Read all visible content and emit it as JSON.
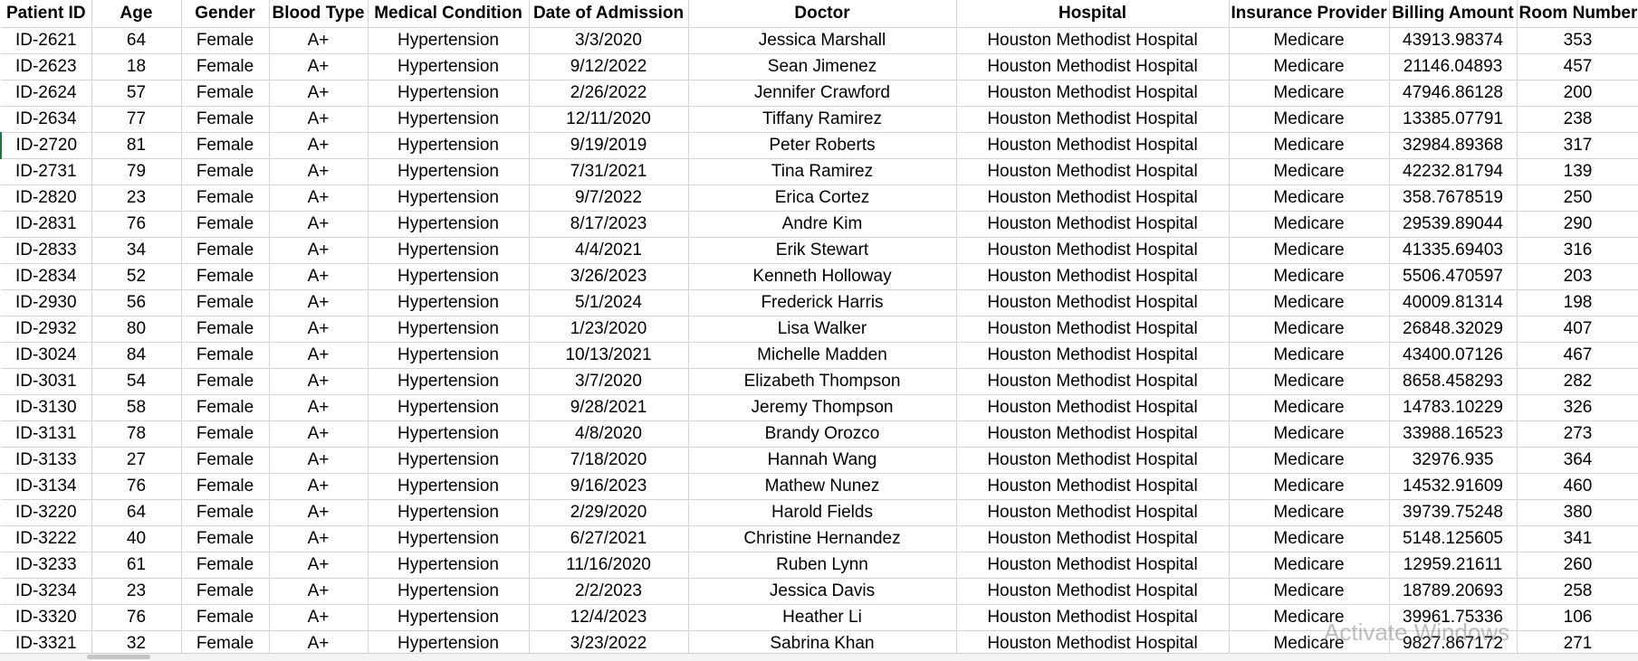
{
  "columns": [
    "Patient ID",
    "Age",
    "Gender",
    "Blood Type",
    "Medical Condition",
    "Date of Admission",
    "Doctor",
    "Hospital",
    "Insurance Provider",
    "Billing Amount",
    "Room Number"
  ],
  "rows": [
    [
      "ID-2621",
      "64",
      "Female",
      "A+",
      "Hypertension",
      "3/3/2020",
      "Jessica Marshall",
      "Houston Methodist Hospital",
      "Medicare",
      "43913.98374",
      "353"
    ],
    [
      "ID-2623",
      "18",
      "Female",
      "A+",
      "Hypertension",
      "9/12/2022",
      "Sean Jimenez",
      "Houston Methodist Hospital",
      "Medicare",
      "21146.04893",
      "457"
    ],
    [
      "ID-2624",
      "57",
      "Female",
      "A+",
      "Hypertension",
      "2/26/2022",
      "Jennifer Crawford",
      "Houston Methodist Hospital",
      "Medicare",
      "47946.86128",
      "200"
    ],
    [
      "ID-2634",
      "77",
      "Female",
      "A+",
      "Hypertension",
      "12/11/2020",
      "Tiffany Ramirez",
      "Houston Methodist Hospital",
      "Medicare",
      "13385.07791",
      "238"
    ],
    [
      "ID-2720",
      "81",
      "Female",
      "A+",
      "Hypertension",
      "9/19/2019",
      "Peter Roberts",
      "Houston Methodist Hospital",
      "Medicare",
      "32984.89368",
      "317"
    ],
    [
      "ID-2731",
      "79",
      "Female",
      "A+",
      "Hypertension",
      "7/31/2021",
      "Tina Ramirez",
      "Houston Methodist Hospital",
      "Medicare",
      "42232.81794",
      "139"
    ],
    [
      "ID-2820",
      "23",
      "Female",
      "A+",
      "Hypertension",
      "9/7/2022",
      "Erica Cortez",
      "Houston Methodist Hospital",
      "Medicare",
      "358.7678519",
      "250"
    ],
    [
      "ID-2831",
      "76",
      "Female",
      "A+",
      "Hypertension",
      "8/17/2023",
      "Andre Kim",
      "Houston Methodist Hospital",
      "Medicare",
      "29539.89044",
      "290"
    ],
    [
      "ID-2833",
      "34",
      "Female",
      "A+",
      "Hypertension",
      "4/4/2021",
      "Erik Stewart",
      "Houston Methodist Hospital",
      "Medicare",
      "41335.69403",
      "316"
    ],
    [
      "ID-2834",
      "52",
      "Female",
      "A+",
      "Hypertension",
      "3/26/2023",
      "Kenneth Holloway",
      "Houston Methodist Hospital",
      "Medicare",
      "5506.470597",
      "203"
    ],
    [
      "ID-2930",
      "56",
      "Female",
      "A+",
      "Hypertension",
      "5/1/2024",
      "Frederick Harris",
      "Houston Methodist Hospital",
      "Medicare",
      "40009.81314",
      "198"
    ],
    [
      "ID-2932",
      "80",
      "Female",
      "A+",
      "Hypertension",
      "1/23/2020",
      "Lisa Walker",
      "Houston Methodist Hospital",
      "Medicare",
      "26848.32029",
      "407"
    ],
    [
      "ID-3024",
      "84",
      "Female",
      "A+",
      "Hypertension",
      "10/13/2021",
      "Michelle Madden",
      "Houston Methodist Hospital",
      "Medicare",
      "43400.07126",
      "467"
    ],
    [
      "ID-3031",
      "54",
      "Female",
      "A+",
      "Hypertension",
      "3/7/2020",
      "Elizabeth Thompson",
      "Houston Methodist Hospital",
      "Medicare",
      "8658.458293",
      "282"
    ],
    [
      "ID-3130",
      "58",
      "Female",
      "A+",
      "Hypertension",
      "9/28/2021",
      "Jeremy Thompson",
      "Houston Methodist Hospital",
      "Medicare",
      "14783.10229",
      "326"
    ],
    [
      "ID-3131",
      "78",
      "Female",
      "A+",
      "Hypertension",
      "4/8/2020",
      "Brandy Orozco",
      "Houston Methodist Hospital",
      "Medicare",
      "33988.16523",
      "273"
    ],
    [
      "ID-3133",
      "27",
      "Female",
      "A+",
      "Hypertension",
      "7/18/2020",
      "Hannah Wang",
      "Houston Methodist Hospital",
      "Medicare",
      "32976.935",
      "364"
    ],
    [
      "ID-3134",
      "76",
      "Female",
      "A+",
      "Hypertension",
      "9/16/2023",
      "Mathew Nunez",
      "Houston Methodist Hospital",
      "Medicare",
      "14532.91609",
      "460"
    ],
    [
      "ID-3220",
      "64",
      "Female",
      "A+",
      "Hypertension",
      "2/29/2020",
      "Harold Fields",
      "Houston Methodist Hospital",
      "Medicare",
      "39739.75248",
      "380"
    ],
    [
      "ID-3222",
      "40",
      "Female",
      "A+",
      "Hypertension",
      "6/27/2021",
      "Christine Hernandez",
      "Houston Methodist Hospital",
      "Medicare",
      "5148.125605",
      "341"
    ],
    [
      "ID-3233",
      "61",
      "Female",
      "A+",
      "Hypertension",
      "11/16/2020",
      "Ruben Lynn",
      "Houston Methodist Hospital",
      "Medicare",
      "12959.21611",
      "260"
    ],
    [
      "ID-3234",
      "23",
      "Female",
      "A+",
      "Hypertension",
      "2/2/2023",
      "Jessica Davis",
      "Houston Methodist Hospital",
      "Medicare",
      "18789.20693",
      "258"
    ],
    [
      "ID-3320",
      "76",
      "Female",
      "A+",
      "Hypertension",
      "12/4/2023",
      "Heather Li",
      "Houston Methodist Hospital",
      "Medicare",
      "39961.75336",
      "106"
    ],
    [
      "ID-3321",
      "32",
      "Female",
      "A+",
      "Hypertension",
      "3/23/2022",
      "Sabrina Khan",
      "Houston Methodist Hospital",
      "Medicare",
      "9827.867172",
      "271"
    ]
  ],
  "watermark": "Activate Windows",
  "colors": {
    "gridline": "#d4d4d4",
    "active_cell_edge": "#217346"
  }
}
